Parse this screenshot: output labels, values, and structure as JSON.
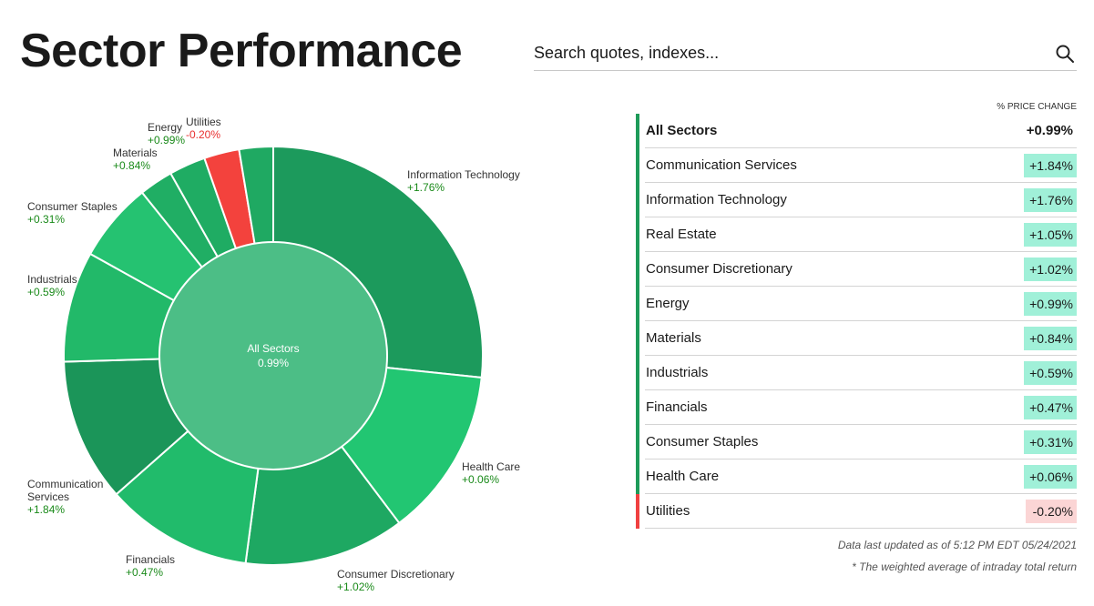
{
  "page": {
    "title": "Sector Performance",
    "search_placeholder": "Search quotes, indexes..."
  },
  "table": {
    "header": "% PRICE CHANGE",
    "rows": [
      {
        "name": "All Sectors",
        "change": "+0.99%",
        "type": "all"
      },
      {
        "name": "Communication Services",
        "change": "+1.84%",
        "type": "pos"
      },
      {
        "name": "Information Technology",
        "change": "+1.76%",
        "type": "pos"
      },
      {
        "name": "Real Estate",
        "change": "+1.05%",
        "type": "pos"
      },
      {
        "name": "Consumer Discretionary",
        "change": "+1.02%",
        "type": "pos"
      },
      {
        "name": "Energy",
        "change": "+0.99%",
        "type": "pos"
      },
      {
        "name": "Materials",
        "change": "+0.84%",
        "type": "pos"
      },
      {
        "name": "Industrials",
        "change": "+0.59%",
        "type": "pos"
      },
      {
        "name": "Financials",
        "change": "+0.47%",
        "type": "pos"
      },
      {
        "name": "Consumer Staples",
        "change": "+0.31%",
        "type": "pos"
      },
      {
        "name": "Health Care",
        "change": "+0.06%",
        "type": "pos"
      },
      {
        "name": "Utilities",
        "change": "-0.20%",
        "type": "neg"
      }
    ],
    "footer_updated": "Data last updated as of 5:12 PM EDT 05/24/2021",
    "footer_note": "* The weighted average of intraday total return"
  },
  "chart_data": {
    "type": "pie",
    "center_label": "All Sectors",
    "center_value": "0.99%",
    "slices": [
      {
        "name": "Information Technology",
        "change": "+1.76%",
        "share": 26.5,
        "color": "#1c9a5c"
      },
      {
        "name": "Health Care",
        "change": "+0.06%",
        "share": 13.0,
        "color": "#22c672"
      },
      {
        "name": "Consumer Discretionary",
        "change": "+1.02%",
        "share": 12.3,
        "color": "#1ea862"
      },
      {
        "name": "Financials",
        "change": "+0.47%",
        "share": 11.3,
        "color": "#21bb6b"
      },
      {
        "name": "Communication Services",
        "change": "+1.84%",
        "share": 11.0,
        "color": "#1b9559"
      },
      {
        "name": "Industrials",
        "change": "+0.59%",
        "share": 8.5,
        "color": "#22b969"
      },
      {
        "name": "Consumer Staples",
        "change": "+0.31%",
        "share": 6.1,
        "color": "#25c271"
      },
      {
        "name": "Materials",
        "change": "+0.84%",
        "share": 2.6,
        "color": "#20ae64"
      },
      {
        "name": "Energy",
        "change": "+0.99%",
        "share": 2.8,
        "color": "#1fac63"
      },
      {
        "name": "Utilities",
        "change": "-0.20%",
        "share": 2.7,
        "color": "#f3423d"
      },
      {
        "name": "Real Estate",
        "change": "+1.05%",
        "share": 2.6,
        "color": "#1fa962"
      }
    ],
    "center_color": "#4cbe86"
  }
}
